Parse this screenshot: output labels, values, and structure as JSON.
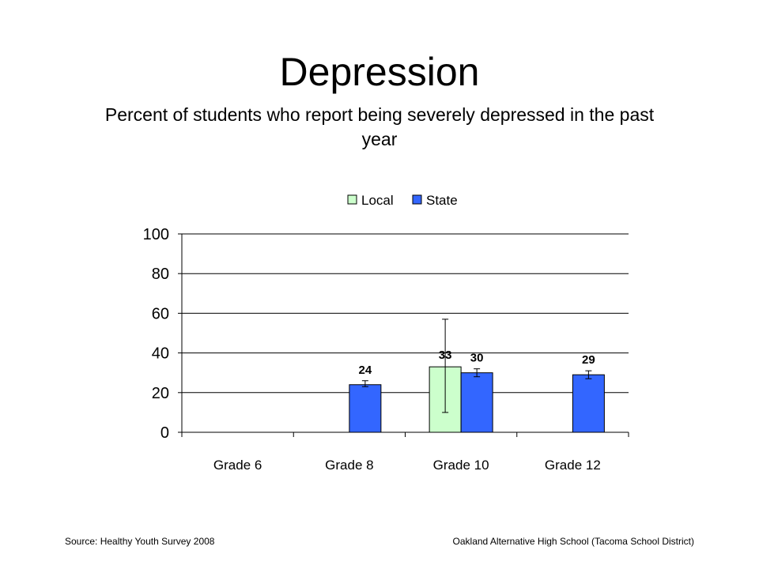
{
  "title": "Depression",
  "subtitle": "Percent of students who report being severely depressed in the past year",
  "footer": {
    "source": "Source: Healthy Youth Survey 2008",
    "school": "Oakland Alternative High School (Tacoma School District)"
  },
  "chart_data": {
    "type": "bar",
    "categories": [
      "Grade 6",
      "Grade 8",
      "Grade 10",
      "Grade 12"
    ],
    "series": [
      {
        "name": "Local",
        "color": "#ccffcc",
        "values": [
          null,
          null,
          33,
          null
        ],
        "error_low": [
          null,
          null,
          10,
          null
        ],
        "error_high": [
          null,
          null,
          57,
          null
        ]
      },
      {
        "name": "State",
        "color": "#3366ff",
        "values": [
          null,
          24,
          30,
          29
        ],
        "error_low": [
          null,
          23,
          28,
          27
        ],
        "error_high": [
          null,
          26,
          32,
          31
        ]
      }
    ],
    "y_ticks": [
      0,
      20,
      40,
      60,
      80,
      100
    ],
    "ylim": [
      0,
      100
    ],
    "grid": true,
    "legend": "top"
  }
}
